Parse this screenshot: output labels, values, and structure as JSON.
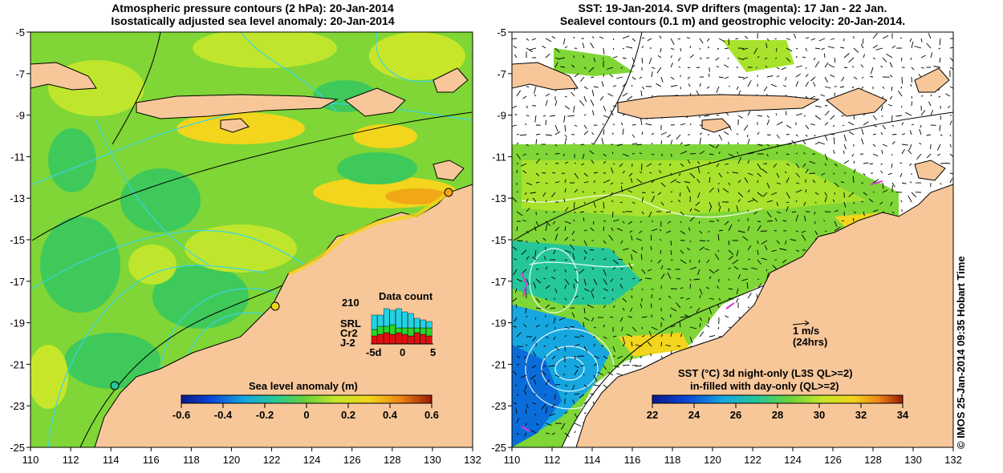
{
  "left_panel": {
    "title_line1": "Atmospheric pressure contours (2 hPa): 20-Jan-2014",
    "title_line2": "Isostatically adjusted sea level anomaly: 20-Jan-2014",
    "colorbar": {
      "label": "Sea level anomaly (m)",
      "ticks": [
        "-0.6",
        "-0.4",
        "-0.2",
        "0",
        "0.2",
        "0.4",
        "0.6"
      ]
    },
    "data_count": {
      "title": "Data count",
      "max_label": "210",
      "legend": [
        {
          "name": "SRL",
          "color": "#22d3e6"
        },
        {
          "name": "Cr2",
          "color": "#29d629"
        },
        {
          "name": "J-2",
          "color": "#e01010"
        }
      ],
      "axis_ticks": [
        "-5d",
        "0",
        "5"
      ]
    }
  },
  "right_panel": {
    "title_line1": "SST: 19-Jan-2014. SVP drifters (magenta): 17 Jan - 22 Jan.",
    "title_line2": "Sealevel contours (0.1 m) and geostrophic velocity: 20-Jan-2014.",
    "colorbar": {
      "label_line1": "SST (°C)  3d night-only (L3S QL>=2)",
      "label_line2": "in-filled with day-only (QL>=2)",
      "ticks": [
        "22",
        "24",
        "26",
        "28",
        "30",
        "32",
        "34"
      ]
    },
    "vector_key": {
      "label": "1 m/s",
      "sub_label": "(24hrs)"
    }
  },
  "axes": {
    "lat_ticks": [
      "-5",
      "-7",
      "-9",
      "-11",
      "-13",
      "-15",
      "-17",
      "-19",
      "-21",
      "-23",
      "-25"
    ],
    "lon_ticks": [
      "110",
      "112",
      "114",
      "116",
      "118",
      "120",
      "122",
      "124",
      "126",
      "128",
      "130",
      "132"
    ]
  },
  "colors": {
    "land": "#f7c79a",
    "ocean_base": "#7fd636",
    "sst_warm": "#a8e22c"
  },
  "credit": "© IMOS 25-Jan-2014 09:35 Hobart Time"
}
